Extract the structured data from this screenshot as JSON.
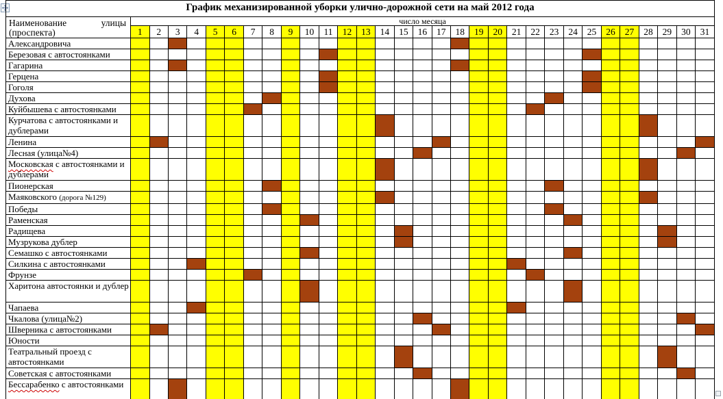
{
  "title": "График механизированной уборки улично-дорожной сети на май 2012 года",
  "header": {
    "name_line1_left": "Наименование",
    "name_line1_right": "улицы",
    "name_line2": "(проспекта)",
    "days_label": "число месяца"
  },
  "days": [
    1,
    2,
    3,
    4,
    5,
    6,
    7,
    8,
    9,
    10,
    11,
    12,
    13,
    14,
    15,
    16,
    17,
    18,
    19,
    20,
    21,
    22,
    23,
    24,
    25,
    26,
    27,
    28,
    29,
    30,
    31
  ],
  "yellow_days": [
    1,
    5,
    6,
    9,
    12,
    13,
    19,
    20,
    26,
    27
  ],
  "colors": {
    "holiday_column": "#FFFF00",
    "cleaning_mark": "#A4420E",
    "grid_line": "#000000"
  },
  "streets": [
    {
      "label": "Александровича",
      "clean_days": [
        3,
        18
      ],
      "two_line": false
    },
    {
      "label": "Березовая с автостоянками",
      "squiggle_word": "Березовая",
      "clean_days": [
        11,
        25
      ],
      "two_line": false
    },
    {
      "label": "Гагарина",
      "clean_days": [
        3,
        18
      ],
      "two_line": false
    },
    {
      "label": "Герцена",
      "clean_days": [
        11,
        25
      ],
      "two_line": false
    },
    {
      "label": "Гоголя",
      "clean_days": [
        11,
        25
      ],
      "two_line": false
    },
    {
      "label": "Духова",
      "clean_days": [
        8,
        23
      ],
      "two_line": false
    },
    {
      "label": "Куйбышева с автостоянками",
      "clean_days": [
        7,
        22
      ],
      "two_line": false
    },
    {
      "label": "Курчатова с автостоянками и дублерами",
      "clean_days": [
        14,
        28
      ],
      "two_line": true
    },
    {
      "label": "Ленина",
      "clean_days": [
        2,
        17,
        31
      ],
      "two_line": false
    },
    {
      "label": "Лесная (улица№4)",
      "clean_days": [
        16,
        30
      ],
      "two_line": false
    },
    {
      "label": "Московская с автостоянками и дублерами",
      "squiggle_word": "Московская",
      "clean_days": [
        14,
        28
      ],
      "two_line": true
    },
    {
      "label": "Пионерская",
      "clean_days": [
        8,
        23
      ],
      "two_line": false
    },
    {
      "label": "Маяковского ",
      "small": "(дорога №129)",
      "clean_days": [
        14,
        28
      ],
      "two_line": false
    },
    {
      "label": "Победы",
      "clean_days": [
        8,
        23
      ],
      "two_line": false
    },
    {
      "label": "Раменская",
      "clean_days": [
        10,
        24
      ],
      "two_line": false
    },
    {
      "label": "Радищева",
      "clean_days": [
        15,
        29
      ],
      "two_line": false
    },
    {
      "label": "Музрукова дублер",
      "clean_days": [
        15,
        29
      ],
      "two_line": false
    },
    {
      "label": "Семашко с автостоянками",
      "clean_days": [
        10,
        24
      ],
      "two_line": false
    },
    {
      "label": "Силкина с автостоянками",
      "squiggle_word": "Силкина",
      "clean_days": [
        4,
        21
      ],
      "two_line": false
    },
    {
      "label": "Фрунзе",
      "clean_days": [
        7,
        22
      ],
      "two_line": false
    },
    {
      "label": "Харитона автостоянки и дублер",
      "clean_days": [
        10,
        24
      ],
      "two_line": true
    },
    {
      "label": "Чапаева",
      "clean_days": [
        4,
        21
      ],
      "two_line": false
    },
    {
      "label": "Чкалова (улица№2)",
      "clean_days": [
        16,
        30
      ],
      "two_line": false
    },
    {
      "label": "Шверника с автостоянками",
      "squiggle_word": "Шверника",
      "clean_days": [
        2,
        17,
        31
      ],
      "two_line": false
    },
    {
      "label": "Юности",
      "clean_days": [],
      "two_line": false
    },
    {
      "label": "Театральный проезд с автостоянками",
      "clean_days": [
        15,
        29
      ],
      "two_line": true
    },
    {
      "label": "Советская с автостоянками",
      "squiggle_word": "Советская",
      "clean_days": [
        16,
        30
      ],
      "two_line": false
    },
    {
      "label": "Бессарабенко с автостоянками",
      "squiggle_word": "Бессарабенко",
      "clean_days": [
        3,
        18
      ],
      "two_line": true
    }
  ]
}
